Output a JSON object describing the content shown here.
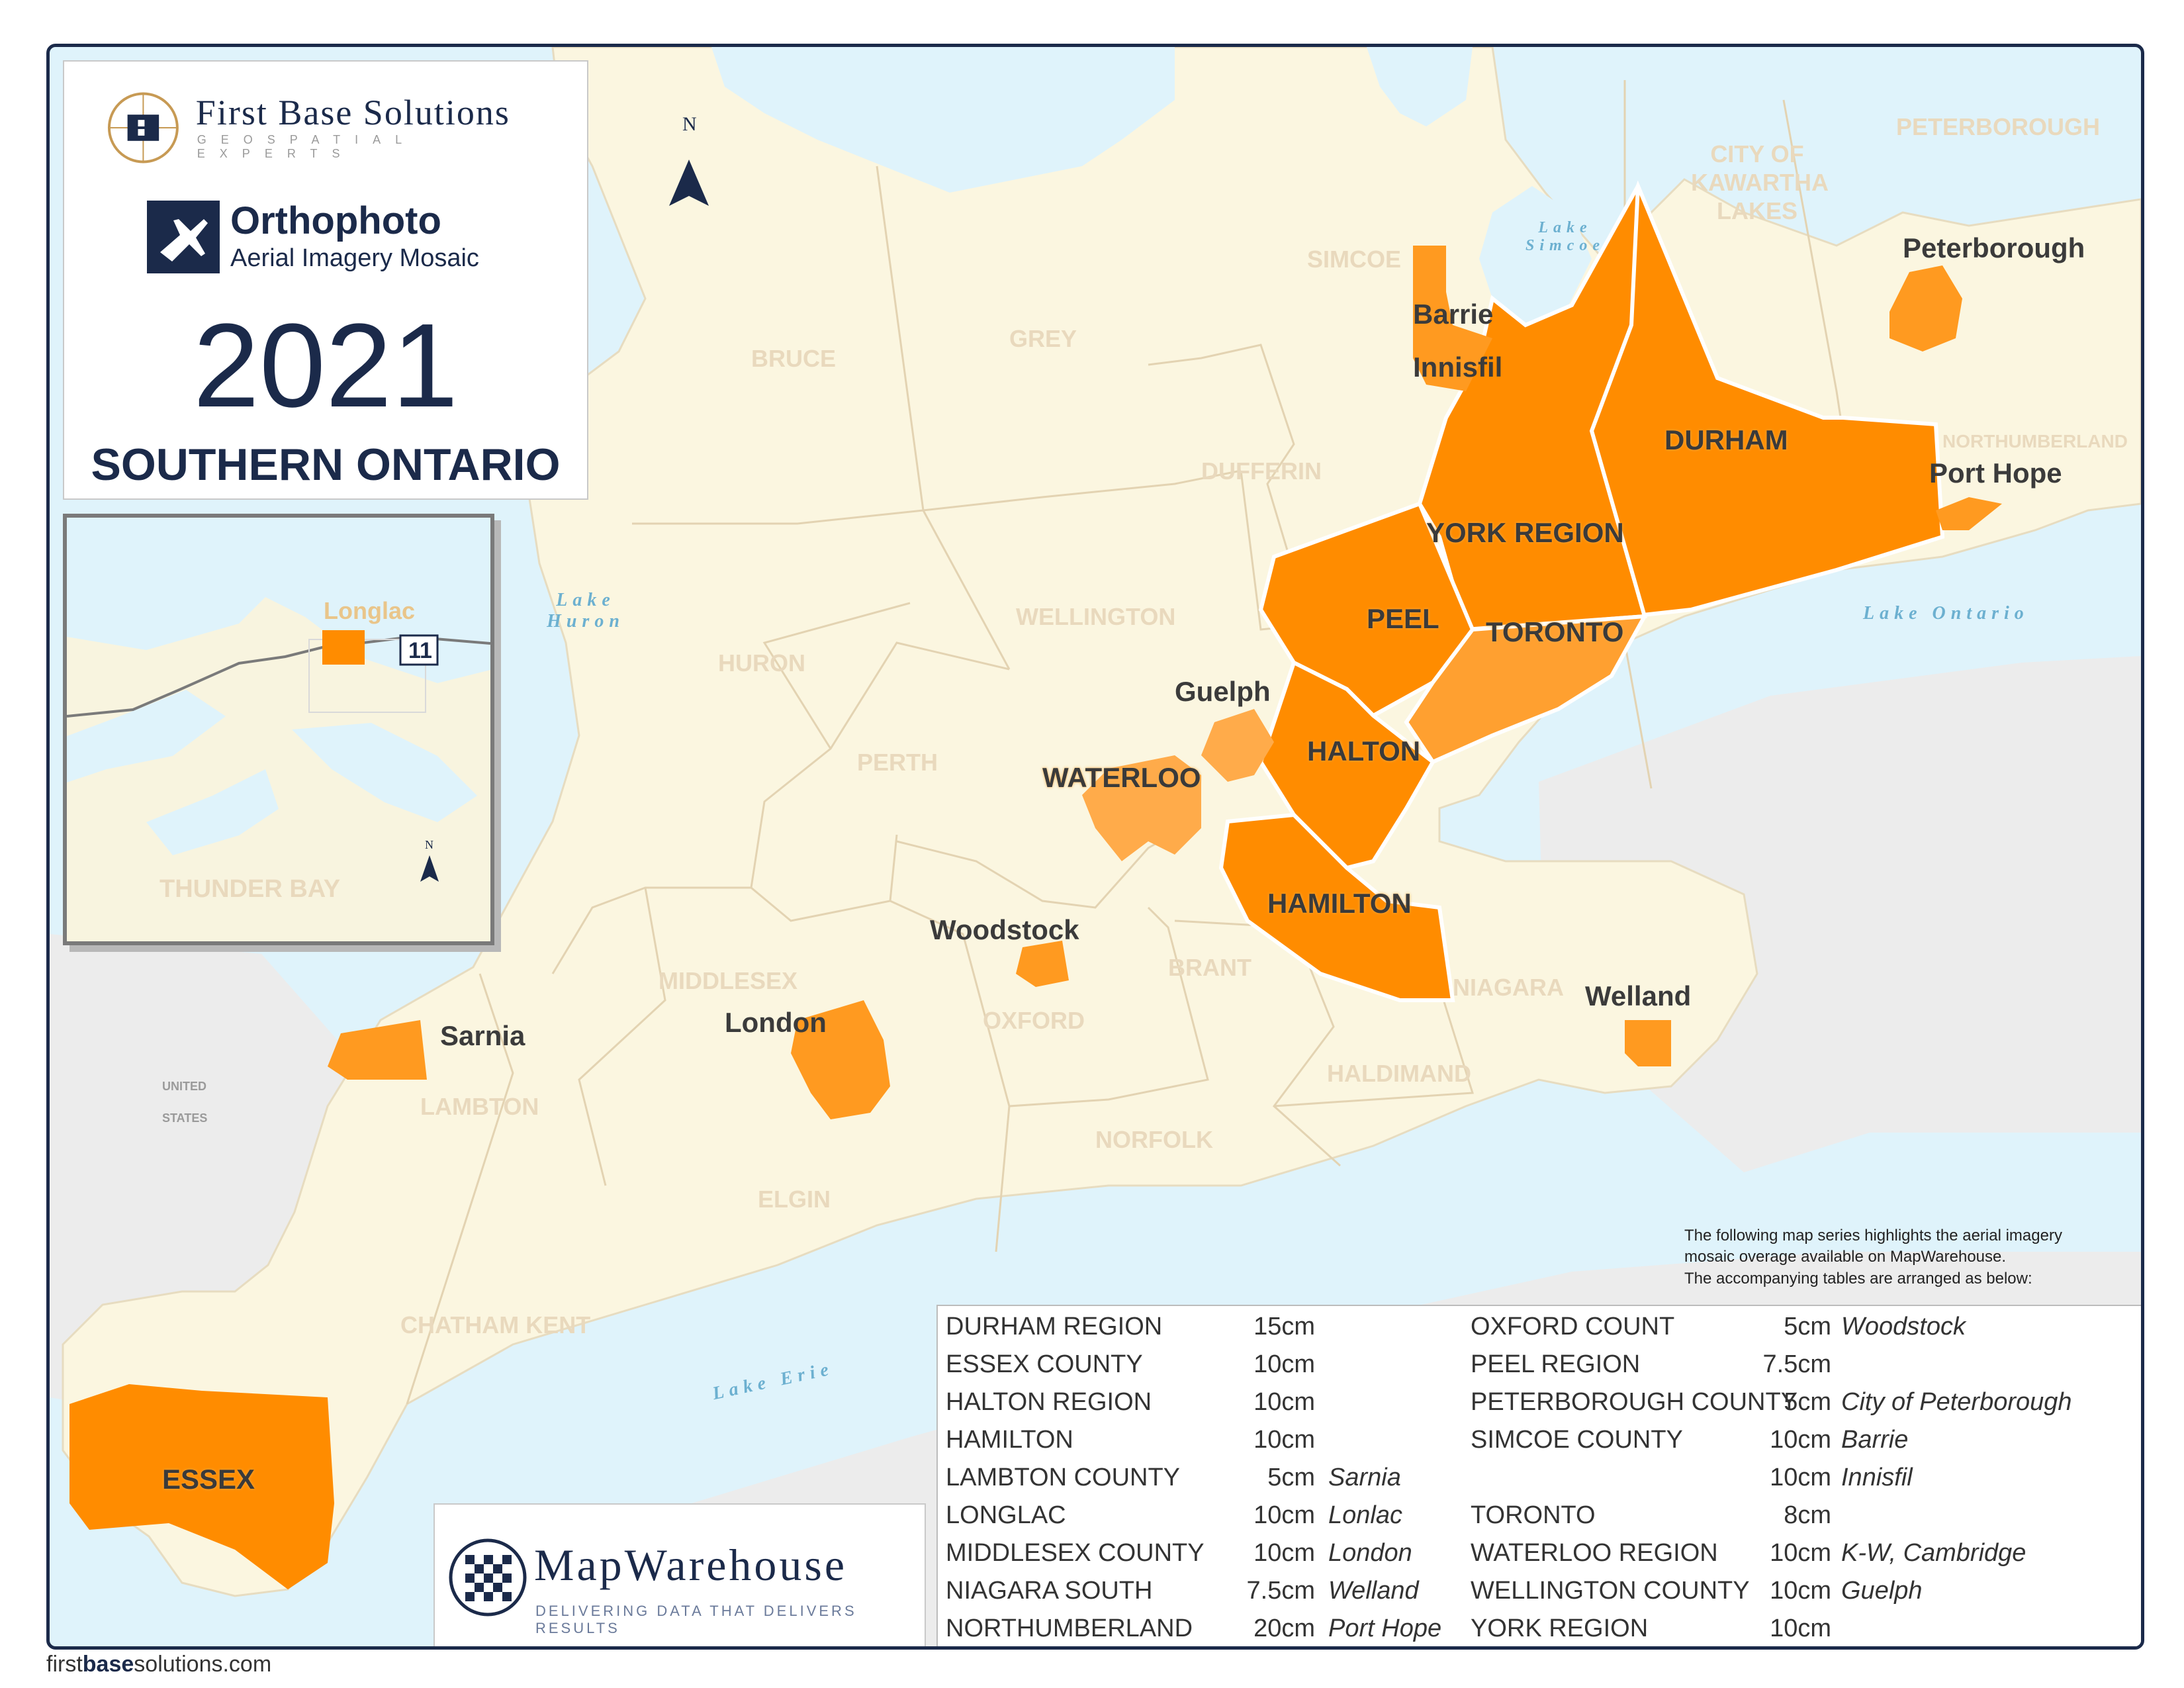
{
  "brand": {
    "company_name": "First Base Solutions",
    "company_tagline": "GEOSPATIAL EXPERTS",
    "product_title": "Orthophoto",
    "product_subtitle": "Aerial Imagery Mosaic",
    "year": "2021",
    "region_title": "SOUTHERN ONTARIO",
    "footer_url_pre": "first",
    "footer_url_bold": "base",
    "footer_url_post": "solutions.com"
  },
  "colors": {
    "navy": "#1b2a4a",
    "coverage_orange": "#ff8c00",
    "coverage_light": "#ffab4a",
    "land": "#fbf6e0",
    "water": "#dff3fb"
  },
  "map": {
    "north_label": "N",
    "counties": [
      "BRUCE",
      "GREY",
      "SIMCOE",
      "DUFFERIN",
      "HURON",
      "WELLINGTON",
      "PERTH",
      "MIDDLESEX",
      "OXFORD",
      "BRANT",
      "LAMBTON",
      "ELGIN",
      "NORFOLK",
      "HALDIMAND",
      "NIAGARA",
      "CHATHAM KENT",
      "PETERBOROUGH",
      "NORTHUMBERLAND",
      "CITY OF KAWARTHA LAKES"
    ],
    "coverage_regions": [
      "DURHAM",
      "YORK REGION",
      "PEEL",
      "TORONTO",
      "HALTON",
      "HAMILTON",
      "WATERLOO",
      "ESSEX"
    ],
    "cities": [
      "Barrie",
      "Innisfil",
      "Peterborough",
      "Port Hope",
      "Guelph",
      "Woodstock",
      "London",
      "Sarnia",
      "Welland"
    ],
    "lakes": [
      "Lake Huron",
      "Lake Simcoe",
      "Lake Ontario",
      "Lake Erie"
    ],
    "other_labels": [
      "UNITED",
      "STATES"
    ]
  },
  "inset": {
    "place_label": "Longlac",
    "highway_shield": "11",
    "region_label": "THUNDER BAY",
    "north_label": "N"
  },
  "note": {
    "line1": "The following map series highlights the aerial imagery",
    "line2": "mosaic overage available on MapWarehouse.",
    "line3": "The accompanying tables are arranged as below:"
  },
  "coverage_table": {
    "left": [
      {
        "area": "DURHAM REGION",
        "res": "15cm",
        "city": ""
      },
      {
        "area": "ESSEX COUNTY",
        "res": "10cm",
        "city": ""
      },
      {
        "area": "HALTON REGION",
        "res": "10cm",
        "city": ""
      },
      {
        "area": "HAMILTON",
        "res": "10cm",
        "city": ""
      },
      {
        "area": "LAMBTON COUNTY",
        "res": "5cm",
        "city": "Sarnia"
      },
      {
        "area": "LONGLAC",
        "res": "10cm",
        "city": "Lonlac"
      },
      {
        "area": "MIDDLESEX COUNTY",
        "res": "10cm",
        "city": "London"
      },
      {
        "area": "NIAGARA SOUTH",
        "res": "7.5cm",
        "city": "Welland"
      },
      {
        "area": "NORTHUMBERLAND",
        "res": "20cm",
        "city": "Port Hope"
      }
    ],
    "right": [
      {
        "area": "OXFORD COUNT",
        "res": "5cm",
        "city": "Woodstock"
      },
      {
        "area": "PEEL REGION",
        "res": "7.5cm",
        "city": ""
      },
      {
        "area": "PETERBOROUGH COUNTY",
        "res": "5cm",
        "city": "City of Peterborough"
      },
      {
        "area": "SIMCOE COUNTY",
        "res": "10cm",
        "city": "Barrie"
      },
      {
        "area": "",
        "res": "10cm",
        "city": "Innisfil"
      },
      {
        "area": "TORONTO",
        "res": "8cm",
        "city": ""
      },
      {
        "area": "WATERLOO REGION",
        "res": "10cm",
        "city": "K-W, Cambridge"
      },
      {
        "area": "WELLINGTON COUNTY",
        "res": "10cm",
        "city": "Guelph"
      },
      {
        "area": "YORK REGION",
        "res": "10cm",
        "city": ""
      }
    ]
  },
  "mapwarehouse": {
    "name": "MapWarehouse",
    "tagline": "DELIVERING DATA THAT DELIVERS RESULTS"
  }
}
